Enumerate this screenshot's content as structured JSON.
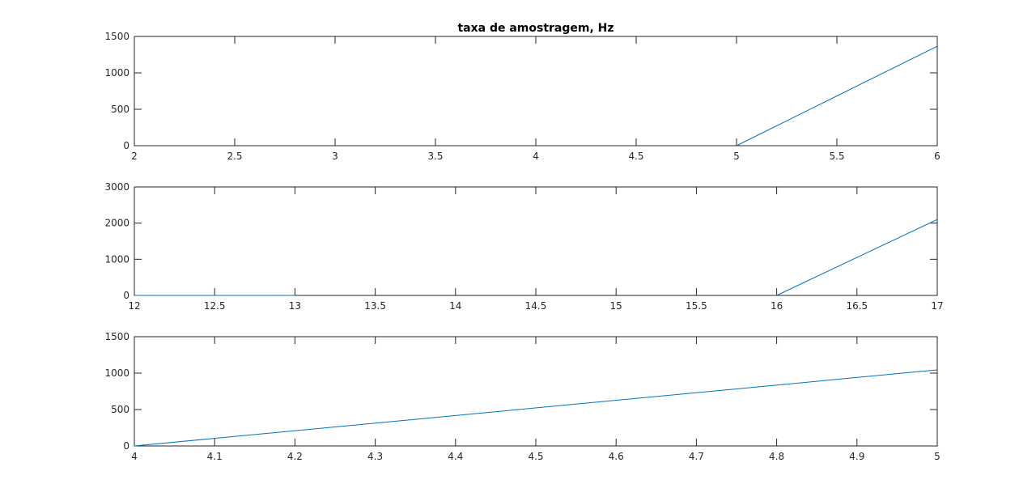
{
  "figure": {
    "title": "taxa de amostragem, Hz"
  },
  "colors": {
    "series": "#0072bd",
    "axes": "#262626",
    "background": "#ffffff"
  },
  "chart_data": [
    {
      "type": "line",
      "title": "taxa de amostragem, Hz",
      "xlabel": "",
      "ylabel": "",
      "xlim": [
        2,
        6
      ],
      "ylim": [
        0,
        1500
      ],
      "xticks": [
        "2",
        "2.5",
        "3",
        "3.5",
        "4",
        "4.5",
        "5",
        "5.5",
        "6"
      ],
      "yticks": [
        "0",
        "500",
        "1000",
        "1500"
      ],
      "grid": false,
      "series": [
        {
          "x": [
            5,
            6
          ],
          "y": [
            0,
            1365
          ]
        }
      ]
    },
    {
      "type": "line",
      "title": "",
      "xlabel": "",
      "ylabel": "",
      "xlim": [
        12,
        17
      ],
      "ylim": [
        0,
        3000
      ],
      "xticks": [
        "12",
        "12.5",
        "13",
        "13.5",
        "14",
        "14.5",
        "15",
        "15.5",
        "16",
        "16.5",
        "17"
      ],
      "yticks": [
        "0",
        "1000",
        "2000",
        "3000"
      ],
      "grid": false,
      "series": [
        {
          "x": [
            12,
            13
          ],
          "y": [
            0,
            0
          ]
        },
        {
          "x": [
            16,
            17
          ],
          "y": [
            0,
            2100
          ]
        }
      ]
    },
    {
      "type": "line",
      "title": "",
      "xlabel": "",
      "ylabel": "",
      "xlim": [
        4,
        5
      ],
      "ylim": [
        0,
        1500
      ],
      "xticks": [
        "4",
        "4.1",
        "4.2",
        "4.3",
        "4.4",
        "4.5",
        "4.6",
        "4.7",
        "4.8",
        "4.9",
        "5"
      ],
      "yticks": [
        "0",
        "500",
        "1000",
        "1500"
      ],
      "grid": false,
      "series": [
        {
          "x": [
            4,
            5
          ],
          "y": [
            0,
            1045
          ]
        }
      ]
    }
  ]
}
